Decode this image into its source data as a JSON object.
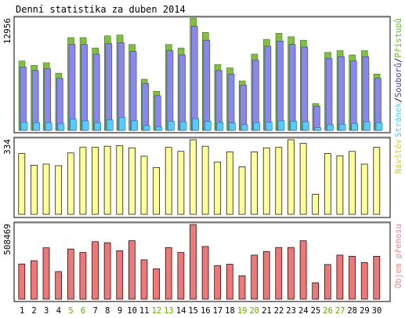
{
  "window": {
    "title": "Denní statistika za duben 2014"
  },
  "chart_data": [
    {
      "type": "bar",
      "title": "Denní statistika za duben 2014",
      "panel": "top",
      "max_label": "12956",
      "ylim": [
        0,
        12956
      ],
      "legend_parts": [
        {
          "text": "Stránek",
          "color": "#55ccff"
        },
        {
          "text": "/",
          "color": "#000000"
        },
        {
          "text": "Souborů",
          "color": "#4444aa"
        },
        {
          "text": "/",
          "color": "#000000"
        },
        {
          "text": "Přístupů",
          "color": "#66bb33"
        }
      ],
      "categories": [
        "1",
        "2",
        "3",
        "4",
        "5",
        "6",
        "7",
        "8",
        "9",
        "10",
        "11",
        "12",
        "13",
        "14",
        "15",
        "16",
        "17",
        "18",
        "19",
        "20",
        "21",
        "22",
        "23",
        "24",
        "25",
        "26",
        "27",
        "28",
        "29",
        "30"
      ],
      "series": [
        {
          "name": "Přístupů",
          "color": "#80c040",
          "values": [
            8000,
            7500,
            7800,
            6600,
            10700,
            10700,
            9500,
            10900,
            11000,
            9900,
            5900,
            4500,
            9900,
            9500,
            12956,
            11300,
            7600,
            7200,
            5700,
            8800,
            10500,
            11200,
            10800,
            10400,
            3100,
            9000,
            9200,
            8700,
            9200,
            6500
          ]
        },
        {
          "name": "Souborů",
          "color": "#8888ee",
          "values": [
            7300,
            6900,
            7100,
            6000,
            9900,
            9900,
            8800,
            10000,
            10100,
            9100,
            5400,
            4000,
            9200,
            8700,
            12000,
            10400,
            6900,
            6500,
            5200,
            8100,
            9700,
            10300,
            9900,
            9600,
            2800,
            8300,
            8500,
            8000,
            8500,
            6000
          ]
        },
        {
          "name": "Stránek",
          "color": "#55ccff",
          "values": [
            950,
            900,
            900,
            800,
            1300,
            1100,
            900,
            1200,
            1500,
            1100,
            550,
            400,
            1050,
            1000,
            1350,
            1050,
            900,
            850,
            650,
            900,
            950,
            1100,
            1050,
            1000,
            300,
            650,
            700,
            800,
            1000,
            900
          ]
        }
      ]
    },
    {
      "type": "bar",
      "panel": "middle",
      "max_label": "334",
      "ylim": [
        0,
        334
      ],
      "legend_parts": [
        {
          "text": "Návštěv",
          "color": "#cccc44"
        }
      ],
      "categories": [
        "1",
        "2",
        "3",
        "4",
        "5",
        "6",
        "7",
        "8",
        "9",
        "10",
        "11",
        "12",
        "13",
        "14",
        "15",
        "16",
        "17",
        "18",
        "19",
        "20",
        "21",
        "22",
        "23",
        "24",
        "25",
        "26",
        "27",
        "28",
        "29",
        "30"
      ],
      "series": [
        {
          "name": "Návštěv",
          "color": "#ffff99",
          "values": [
            272,
            220,
            225,
            218,
            275,
            300,
            300,
            305,
            308,
            298,
            260,
            210,
            300,
            282,
            334,
            305,
            235,
            280,
            213,
            280,
            298,
            300,
            334,
            318,
            90,
            272,
            262,
            282,
            225,
            300
          ]
        }
      ]
    },
    {
      "type": "bar",
      "panel": "bottom",
      "max_label": "508469",
      "ylim": [
        0,
        508469
      ],
      "legend_parts": [
        {
          "text": "Objem přenosu",
          "color": "#ee8888"
        }
      ],
      "categories": [
        "1",
        "2",
        "3",
        "4",
        "5",
        "6",
        "7",
        "8",
        "9",
        "10",
        "11",
        "12",
        "13",
        "14",
        "15",
        "16",
        "17",
        "18",
        "19",
        "20",
        "21",
        "22",
        "23",
        "24",
        "25",
        "26",
        "27",
        "28",
        "29",
        "30"
      ],
      "series": [
        {
          "name": "Objem přenosu",
          "color": "#ee7777",
          "values": [
            240000,
            262000,
            350000,
            188000,
            342000,
            318000,
            392000,
            385000,
            330000,
            398000,
            268000,
            207000,
            352000,
            318000,
            508469,
            359000,
            229000,
            238000,
            160000,
            300000,
            325000,
            352000,
            352000,
            398000,
            112000,
            236000,
            300000,
            293000,
            250000,
            292000
          ]
        }
      ]
    }
  ],
  "x_axis": {
    "labels": [
      "1",
      "2",
      "3",
      "4",
      "5",
      "6",
      "7",
      "8",
      "9",
      "10",
      "11",
      "12",
      "13",
      "14",
      "15",
      "16",
      "17",
      "18",
      "19",
      "20",
      "21",
      "22",
      "23",
      "24",
      "25",
      "26",
      "27",
      "28",
      "29",
      "30"
    ],
    "weekend_days": [
      5,
      6,
      12,
      13,
      19,
      20,
      26,
      27
    ],
    "weekday_color": "#000000",
    "weekend_color": "#66aa00"
  }
}
